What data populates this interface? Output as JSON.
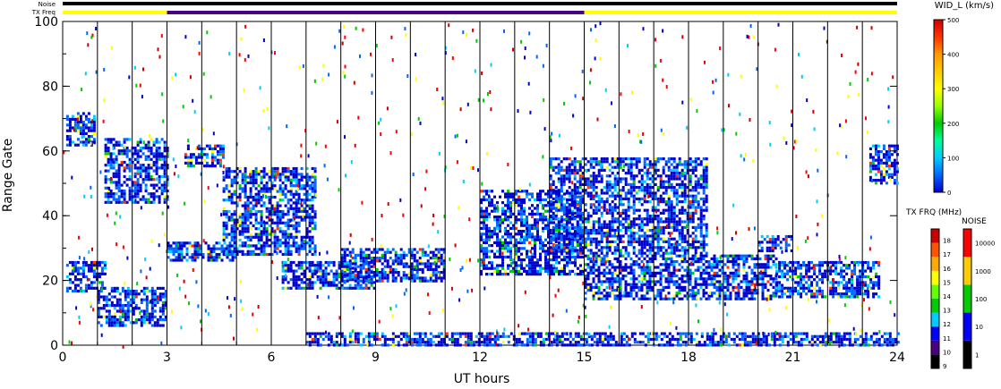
{
  "chart_data": {
    "type": "heatmap",
    "title": "",
    "xlabel": "UT hours",
    "ylabel": "Range Gate",
    "xlim": [
      0,
      24
    ],
    "ylim": [
      0,
      100
    ],
    "x_ticks": [
      "0",
      "3",
      "6",
      "9",
      "12",
      "15",
      "18",
      "21",
      "24"
    ],
    "y_ticks": [
      "0",
      "20",
      "40",
      "60",
      "80",
      "100"
    ],
    "x_tick_values": [
      0,
      3,
      6,
      9,
      12,
      15,
      18,
      21,
      24
    ],
    "y_tick_values": [
      0,
      20,
      40,
      60,
      80,
      100
    ],
    "scan_boundaries_hours": [
      1,
      2,
      3,
      4,
      5,
      6,
      7,
      8,
      9,
      10,
      11,
      12,
      13,
      14,
      15,
      16,
      17,
      18,
      19,
      20,
      21,
      22,
      23
    ],
    "status_bars": {
      "noise_label": "Noise",
      "txfreq_label": "TX Freq",
      "noise_color": "#000000",
      "txfreq_segments": [
        {
          "start": 0,
          "end": 3,
          "color": "#ffff00"
        },
        {
          "start": 3,
          "end": 15,
          "color": "#4b0082"
        },
        {
          "start": 15,
          "end": 24,
          "color": "#ffff00"
        }
      ]
    },
    "echo_regions": [
      {
        "t0": 0.1,
        "t1": 1.2,
        "g0": 17,
        "g1": 26
      },
      {
        "t0": 1.0,
        "t1": 3.0,
        "g0": 6,
        "g1": 18
      },
      {
        "t0": 0.1,
        "t1": 0.9,
        "g0": 62,
        "g1": 72
      },
      {
        "t0": 1.2,
        "t1": 3.0,
        "g0": 44,
        "g1": 64
      },
      {
        "t0": 3.0,
        "t1": 5.0,
        "g0": 26,
        "g1": 32
      },
      {
        "t0": 3.5,
        "t1": 4.6,
        "g0": 55,
        "g1": 62
      },
      {
        "t0": 4.6,
        "t1": 7.3,
        "g0": 28,
        "g1": 55
      },
      {
        "t0": 6.3,
        "t1": 9.0,
        "g0": 18,
        "g1": 26
      },
      {
        "t0": 8.0,
        "t1": 11.0,
        "g0": 20,
        "g1": 30
      },
      {
        "t0": 12.0,
        "t1": 15.0,
        "g0": 22,
        "g1": 48
      },
      {
        "t0": 14.0,
        "t1": 18.5,
        "g0": 28,
        "g1": 58
      },
      {
        "t0": 15.0,
        "t1": 20.5,
        "g0": 14,
        "g1": 28
      },
      {
        "t0": 20.5,
        "t1": 23.5,
        "g0": 15,
        "g1": 26
      },
      {
        "t0": 20.0,
        "t1": 21.0,
        "g0": 29,
        "g1": 34
      },
      {
        "t0": 23.2,
        "t1": 24.0,
        "g0": 50,
        "g1": 62
      },
      {
        "t0": 7.0,
        "t1": 24.0,
        "g0": 0,
        "g1": 4
      }
    ],
    "colorbars": [
      {
        "title": "WID_L (km/s)",
        "ticks": [
          "0",
          "100",
          "200",
          "300",
          "400",
          "500"
        ],
        "tick_values": [
          0,
          100,
          200,
          300,
          400,
          500
        ],
        "colors": [
          "#0000cc",
          "#0066ff",
          "#00ccff",
          "#00ff99",
          "#00cc00",
          "#99ff00",
          "#ffff00",
          "#ffcc00",
          "#ff9900",
          "#ff3300",
          "#cc0000"
        ]
      },
      {
        "title": "TX FRQ (MHz)",
        "ticks": [
          "9",
          "10",
          "11",
          "12",
          "13",
          "14",
          "15",
          "16",
          "17",
          "18"
        ],
        "colors": [
          "#000000",
          "#4b0082",
          "#0000ff",
          "#00ccff",
          "#00cc00",
          "#66ff00",
          "#ffff00",
          "#ffaa00",
          "#ff5500",
          "#cc0000"
        ]
      },
      {
        "title": "NOISE",
        "ticks": [
          "1",
          "10",
          "100",
          "1000",
          "10000"
        ],
        "colors": [
          "#000000",
          "#0000ff",
          "#00cc00",
          "#ffcc00",
          "#ff0000"
        ]
      }
    ]
  }
}
